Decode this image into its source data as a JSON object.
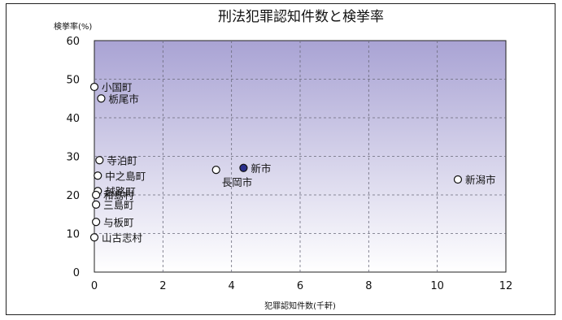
{
  "chart_data": {
    "type": "scatter",
    "title": "刑法犯罪認知件数と検挙率",
    "xlabel": "犯罪認知件数(千軒)",
    "ylabel": "検挙率(%)",
    "xlim": [
      0,
      12
    ],
    "ylim": [
      0,
      60
    ],
    "xticks": [
      0,
      2,
      4,
      6,
      8,
      10,
      12
    ],
    "yticks": [
      0,
      10,
      20,
      30,
      40,
      50,
      60
    ],
    "grid": true,
    "points": [
      {
        "label": "小国町",
        "x": 0.0,
        "y": 48.0,
        "highlight": false
      },
      {
        "label": "栃尾市",
        "x": 0.2,
        "y": 45.0,
        "highlight": false
      },
      {
        "label": "寺泊町",
        "x": 0.15,
        "y": 29.0,
        "highlight": false
      },
      {
        "label": "中之島町",
        "x": 0.1,
        "y": 25.0,
        "highlight": false
      },
      {
        "label": "越路町",
        "x": 0.1,
        "y": 21.0,
        "highlight": false
      },
      {
        "label": "和島村",
        "x": 0.05,
        "y": 20.0,
        "highlight": false
      },
      {
        "label": "三島町",
        "x": 0.05,
        "y": 17.5,
        "highlight": false
      },
      {
        "label": "与板町",
        "x": 0.05,
        "y": 13.0,
        "highlight": false
      },
      {
        "label": "山古志村",
        "x": 0.0,
        "y": 9.0,
        "highlight": false
      },
      {
        "label": "長岡市",
        "x": 3.55,
        "y": 26.5,
        "highlight": false
      },
      {
        "label": "新市",
        "x": 4.35,
        "y": 27.0,
        "highlight": true
      },
      {
        "label": "新潟市",
        "x": 10.6,
        "y": 24.0,
        "highlight": false
      }
    ]
  },
  "colors": {
    "plot_top": "#a9a3d4",
    "plot_bottom": "#ffffff",
    "grid": "#6a6a7a",
    "marker_fill": "#ffffff",
    "marker_stroke": "#111111",
    "highlight_fill": "#2a2f8c"
  }
}
